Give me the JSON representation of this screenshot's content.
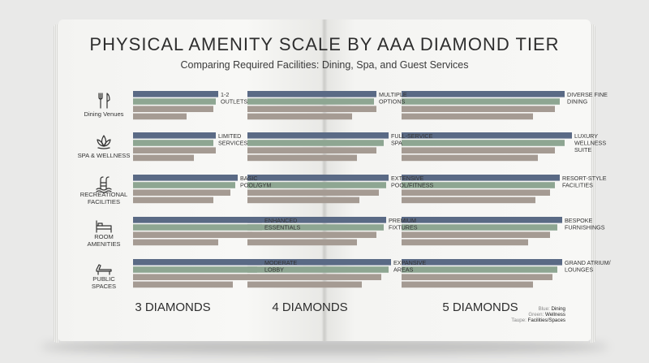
{
  "chart_data": {
    "type": "bar",
    "title": "PHYSICAL AMENITY SCALE BY AAA DIAMOND TIER",
    "subtitle": "Comparing Required Facilities: Dining, Spa, and Guest Services",
    "tiers": [
      "3 DIAMONDS",
      "4 DIAMONDS",
      "5 DIAMONDS"
    ],
    "categories": [
      {
        "label": "Dining Venues",
        "icon": "fork-knife-icon"
      },
      {
        "label": "SPA & WELLNESS",
        "icon": "lotus-icon"
      },
      {
        "label": "RECREATIONAL FACILITIES",
        "icon": "pool-ladder-icon"
      },
      {
        "label": "ROOM AMENITIES",
        "icon": "bed-icon"
      },
      {
        "label": "PUBLIC SPACES",
        "icon": "lounge-chair-icon"
      }
    ],
    "series": [
      {
        "name": "Dining",
        "color": "#5a6a85"
      },
      {
        "name": "Wellness",
        "color": "#8ea692"
      },
      {
        "name": "Facilities/Spaces",
        "color": "#a59b93"
      }
    ],
    "values": [
      [
        [
          0.35,
          0.34,
          0.33,
          0.22
        ],
        [
          0.53,
          0.52,
          0.53,
          0.43
        ],
        [
          0.67,
          0.65,
          0.63,
          0.54
        ]
      ],
      [
        [
          0.34,
          0.33,
          0.34,
          0.25
        ],
        [
          0.58,
          0.56,
          0.53,
          0.45
        ],
        [
          0.7,
          0.67,
          0.63,
          0.56
        ]
      ],
      [
        [
          0.43,
          0.42,
          0.4,
          0.33
        ],
        [
          0.58,
          0.57,
          0.54,
          0.46
        ],
        [
          0.65,
          0.63,
          0.61,
          0.55
        ]
      ],
      [
        [
          0.53,
          0.53,
          0.49,
          0.35
        ],
        [
          0.57,
          0.56,
          0.53,
          0.45
        ],
        [
          0.66,
          0.64,
          0.61,
          0.52
        ]
      ],
      [
        [
          0.53,
          0.51,
          0.48,
          0.41
        ],
        [
          0.59,
          0.58,
          0.55,
          0.47
        ],
        [
          0.66,
          0.64,
          0.62,
          0.54
        ]
      ]
    ],
    "annotations": [
      [
        "1-2 OUTLETS",
        "MULTIPLE OPTIONS",
        "DIVERSE FINE DINING"
      ],
      [
        "LIMITED SERVICES",
        "FULL-SERVICE SPA",
        "LUXURY WELLNESS SUITE"
      ],
      [
        "BASIC POOL/GYM",
        "EXTENSIVE POOL/FITNESS",
        "RESORT-STYLE FACILITIES"
      ],
      [
        "ENHANCED ESSENTIALS",
        "PREMIUM FIXTURES",
        "BESPOKE FURNISHINGS"
      ],
      [
        "MODERATE LOBBY",
        "EXPANSIVE AREAS",
        "GRAND ATRIUM/ LOUNGES"
      ]
    ],
    "legend": [
      {
        "color": "Blue",
        "name": "Dining"
      },
      {
        "color": "Green",
        "name": "Wellness"
      },
      {
        "color": "Taupe",
        "name": "Facilities/Spaces"
      }
    ],
    "legend_position": "bottom-right",
    "grid": false
  }
}
